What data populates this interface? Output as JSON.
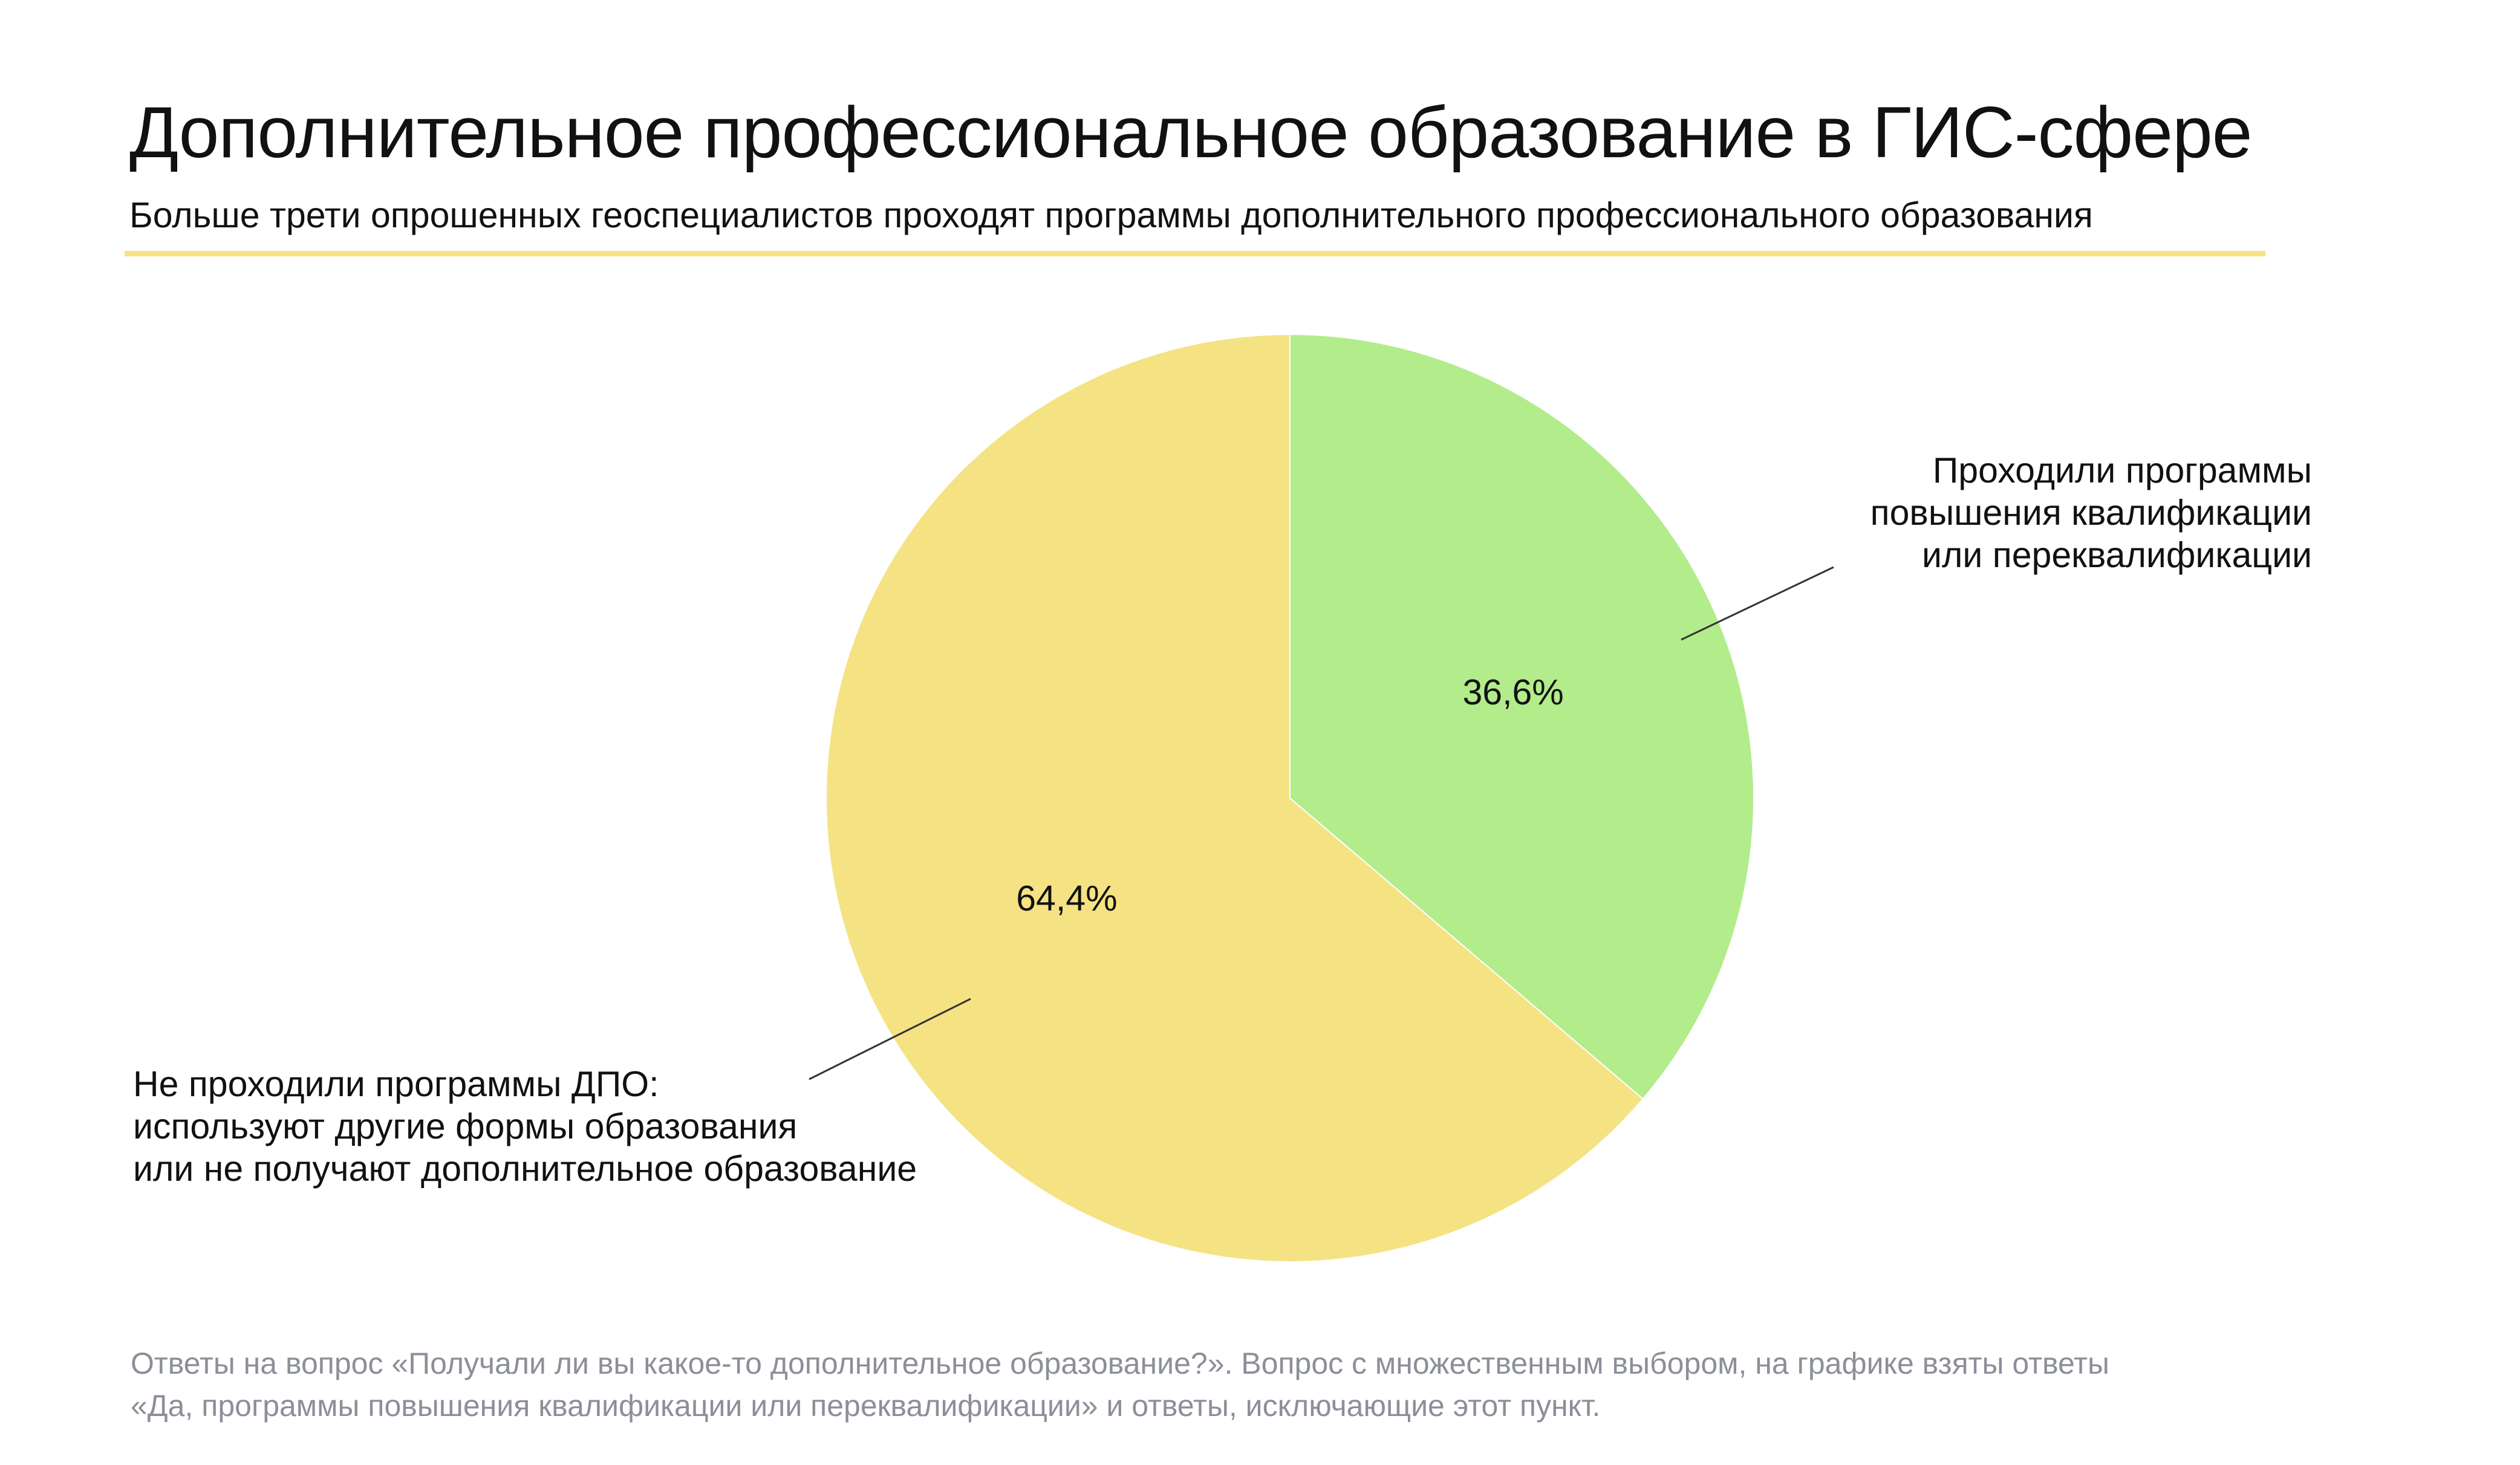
{
  "chart_data": {
    "type": "pie",
    "title": "Дополнительное профессиональное образование в ГИС-сфере",
    "subtitle": "Больше трети опрошенных геоспециалистов проходят программы дополнительного профессионального образования",
    "slices": [
      {
        "label_lines": [
          "Проходили программы",
          "повышения квалификации",
          "или переквалификации"
        ],
        "value": 36.6,
        "value_label": "36,6%",
        "color": "#b2ec8b"
      },
      {
        "label_lines": [
          "Не проходили программы ДПО:",
          "используют другие формы образования",
          "или не получают дополнительное образование"
        ],
        "value": 64.4,
        "value_label": "64,4%",
        "color": "#f5e283"
      }
    ],
    "start": "12 o'clock",
    "direction": "clockwise",
    "legend": "none"
  },
  "accent_rule_color": "#f5e283",
  "leader_line_color": "#333333",
  "footnote_lines": [
    "Ответы на вопрос «Получали ли вы какое-то дополнительное образование?». Вопрос с множественным выбором, на графике взяты ответы",
    "«Да, программы повышения квалификации или переквалификации» и ответы, исключающие этот пункт."
  ]
}
